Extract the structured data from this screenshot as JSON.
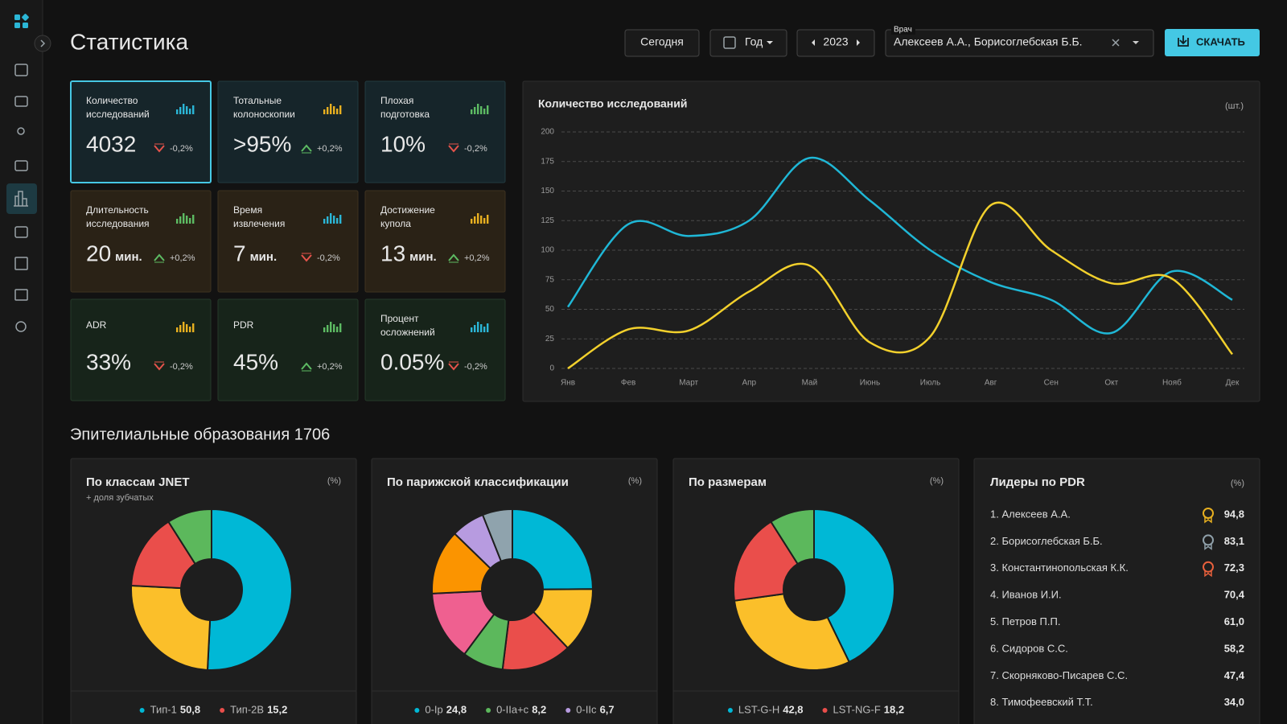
{
  "header": {
    "title": "Статистика",
    "today": "Сегодня",
    "period": "Год",
    "year": "2023",
    "doctor_label": "Врач",
    "doctor_value": "Алексеев А.А., Борисоглебская Б.Б.",
    "download": "СКАЧАТЬ"
  },
  "kpis": [
    {
      "title": [
        "Количество",
        "исследований"
      ],
      "value": "4032",
      "change": "-0,2%",
      "trend": "down",
      "theme": "teal",
      "icon_color": "#2bb6d6",
      "selected": true
    },
    {
      "title": [
        "Тотальные",
        "колоноскопии"
      ],
      "value": ">95%",
      "change": "+0,2%",
      "trend": "up",
      "theme": "teal",
      "icon_color": "#e8b020"
    },
    {
      "title": [
        "Плохая",
        "подготовка"
      ],
      "value": "10%",
      "change": "-0,2%",
      "trend": "down",
      "theme": "teal",
      "icon_color": "#5dbb63"
    },
    {
      "title": [
        "Длительность",
        "исследования"
      ],
      "value": "20",
      "unit": "мин.",
      "change": "+0,2%",
      "trend": "up",
      "theme": "brown",
      "icon_color": "#5dbb63"
    },
    {
      "title": [
        "Время",
        "извлечения"
      ],
      "value": "7",
      "unit": "мин.",
      "change": "-0,2%",
      "trend": "down",
      "theme": "brown",
      "icon_color": "#2bb6d6"
    },
    {
      "title": [
        "Достижение",
        "купола"
      ],
      "value": "13",
      "unit": "мин.",
      "change": "+0,2%",
      "trend": "up",
      "theme": "brown",
      "icon_color": "#e8b020"
    },
    {
      "title": [
        "ADR"
      ],
      "value": "33%",
      "change": "-0,2%",
      "trend": "down",
      "theme": "green",
      "icon_color": "#e8b020"
    },
    {
      "title": [
        "PDR"
      ],
      "value": "45%",
      "change": "+0,2%",
      "trend": "up",
      "theme": "green",
      "icon_color": "#5dbb63"
    },
    {
      "title": [
        "Процент",
        "осложнений"
      ],
      "value": "0.05%",
      "change": "-0,2%",
      "trend": "down",
      "theme": "green",
      "icon_color": "#2bb6d6"
    }
  ],
  "line_chart": {
    "type": "line",
    "title": "Количество исследований",
    "unit": "(шт.)",
    "categories": [
      "Янв",
      "Фев",
      "Март",
      "Апр",
      "Май",
      "Июнь",
      "Июль",
      "Авг",
      "Сен",
      "Окт",
      "Нояб",
      "Дек"
    ],
    "series": [
      {
        "color": "#1fb7d6",
        "values": [
          52,
          122,
          112,
          125,
          178,
          142,
          100,
          73,
          58,
          30,
          82,
          58
        ]
      },
      {
        "color": "#f2d02c",
        "values": [
          0,
          33,
          32,
          65,
          87,
          22,
          27,
          138,
          100,
          72,
          76,
          12
        ]
      }
    ],
    "ylim": [
      0,
      200
    ],
    "yticks": [
      0,
      25,
      50,
      75,
      100,
      125,
      150,
      175,
      200
    ],
    "grid": true
  },
  "section_title": "Эпителиальные образования 1706",
  "donuts": [
    {
      "type": "pie",
      "title": "По классам JNET",
      "subtitle": "+ доля зубчатых",
      "unit": "(%)",
      "categories": [
        "Тип-1",
        null,
        "Тип-2В",
        null
      ],
      "values": [
        50.8,
        25,
        15.2,
        9
      ],
      "value_labels": [
        "50,8",
        null,
        "15,2",
        null
      ],
      "colors": [
        "#00b8d6",
        "#fbbf2a",
        "#ea4e4b",
        "#5cb85c"
      ]
    },
    {
      "type": "pie",
      "title": "По парижской классификации",
      "unit": "(%)",
      "categories": [
        "0-Ip",
        null,
        null,
        "0-IIa+c",
        null,
        null,
        "0-IIc",
        null
      ],
      "values": [
        24.8,
        13,
        14,
        8.2,
        14,
        13,
        6.7,
        6
      ],
      "value_labels": [
        "24,8",
        null,
        null,
        "8,2",
        null,
        null,
        "6,7",
        null
      ],
      "colors": [
        "#00b8d6",
        "#fbbf2a",
        "#ea4e4b",
        "#5cb85c",
        "#ef6090",
        "#fb9400",
        "#b79be0",
        "#8fa3ad"
      ]
    },
    {
      "type": "pie",
      "title": "По размерам",
      "unit": "(%)",
      "categories": [
        "LST-G-H",
        null,
        "LST-NG-F",
        null
      ],
      "values": [
        42.8,
        30,
        18.2,
        9
      ],
      "value_labels": [
        "42,8",
        null,
        "18,2",
        null
      ],
      "colors": [
        "#00b8d6",
        "#fbbf2a",
        "#ea4e4b",
        "#5cb85c"
      ]
    }
  ],
  "leaders": {
    "title": "Лидеры по PDR",
    "unit": "(%)",
    "rows": [
      {
        "name": "1. Алексеев А.А.",
        "value": "94,8",
        "medal": "#e8b020"
      },
      {
        "name": "2. Борисоглебская Б.Б.",
        "value": "83,1",
        "medal": "#8fa0aa"
      },
      {
        "name": "3. Константинопольская К.К.",
        "value": "72,3",
        "medal": "#e8603c"
      },
      {
        "name": "4. Иванов И.И.",
        "value": "70,4"
      },
      {
        "name": "5. Петров П.П.",
        "value": "61,0"
      },
      {
        "name": "6. Сидоров С.С.",
        "value": "58,2"
      },
      {
        "name": "7. Скорняково-Писарев С.С.",
        "value": "47,4"
      },
      {
        "name": "8. Тимофеевский Т.Т.",
        "value": "34,0"
      }
    ]
  }
}
